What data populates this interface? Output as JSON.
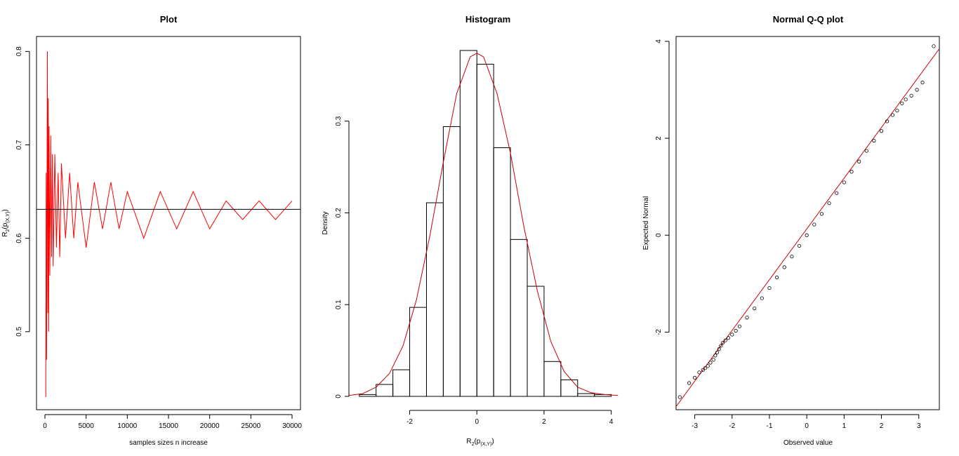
{
  "chart_data": [
    {
      "type": "line",
      "title": "Plot",
      "xlabel": "samples sizes n increase",
      "ylabel": {
        "main": "R",
        "sub1": "2",
        "mid": "(p",
        "sub2": "(X,Y)",
        "end": ")"
      },
      "xlim": [
        0,
        30000
      ],
      "ylim": [
        0.43,
        0.81
      ],
      "xticks": [
        0,
        5000,
        10000,
        15000,
        20000,
        25000,
        30000
      ],
      "yticks": [
        0.5,
        0.6,
        0.7,
        0.8
      ],
      "series": [
        {
          "color": "#ff0000",
          "x": [
            100,
            150,
            200,
            250,
            300,
            350,
            400,
            450,
            500,
            600,
            700,
            800,
            900,
            1000,
            1200,
            1400,
            1600,
            1800,
            2000,
            2500,
            3000,
            3500,
            4000,
            5000,
            6000,
            7000,
            8000,
            9000,
            10000,
            12000,
            14000,
            16000,
            18000,
            20000,
            22000,
            24000,
            26000,
            28000,
            30000
          ],
          "y": [
            0.43,
            0.67,
            0.47,
            0.63,
            0.8,
            0.52,
            0.75,
            0.5,
            0.72,
            0.56,
            0.71,
            0.58,
            0.69,
            0.57,
            0.69,
            0.59,
            0.67,
            0.58,
            0.68,
            0.6,
            0.67,
            0.6,
            0.66,
            0.59,
            0.66,
            0.61,
            0.66,
            0.61,
            0.65,
            0.6,
            0.65,
            0.61,
            0.65,
            0.61,
            0.64,
            0.62,
            0.64,
            0.62,
            0.64
          ]
        }
      ],
      "hline": 0.631,
      "hline_color": "#000000"
    },
    {
      "type": "bar",
      "title": "Histogram",
      "xlabel": {
        "main": "R",
        "sub1": "2",
        "mid": "(p",
        "sub2": "(X,Y)",
        "end": ")"
      },
      "ylabel": "Density",
      "xlim": [
        -3.6,
        4.3
      ],
      "ylim": [
        0,
        0.38
      ],
      "xticks": [
        -2,
        0,
        2,
        4
      ],
      "yticks": [
        0.0,
        0.1,
        0.2,
        0.3
      ],
      "bin_edges": [
        -3.5,
        -3.0,
        -2.5,
        -2.0,
        -1.5,
        -1.0,
        -0.5,
        0.0,
        0.5,
        1.0,
        1.5,
        2.0,
        2.5,
        3.0,
        3.5,
        4.0
      ],
      "values": [
        0.002,
        0.013,
        0.029,
        0.097,
        0.211,
        0.294,
        0.377,
        0.362,
        0.271,
        0.171,
        0.12,
        0.038,
        0.018,
        0.003,
        0.002
      ],
      "density_curve": {
        "color": "#cc0000",
        "x": [
          -3.8,
          -3.4,
          -3.0,
          -2.6,
          -2.2,
          -1.8,
          -1.4,
          -1.0,
          -0.6,
          -0.2,
          0.0,
          0.2,
          0.6,
          1.0,
          1.4,
          1.8,
          2.2,
          2.6,
          3.0,
          3.4,
          3.8,
          4.2
        ],
        "y": [
          0.001,
          0.003,
          0.01,
          0.025,
          0.055,
          0.105,
          0.175,
          0.255,
          0.33,
          0.37,
          0.374,
          0.37,
          0.33,
          0.265,
          0.185,
          0.115,
          0.06,
          0.027,
          0.01,
          0.004,
          0.002,
          0.001
        ]
      }
    },
    {
      "type": "scatter",
      "title": "Normal Q-Q plot",
      "xlabel": "Observed value",
      "ylabel": "Expected Normal",
      "xlim": [
        -3.5,
        3.55
      ],
      "ylim": [
        -3.6,
        4.1
      ],
      "xticks": [
        -3,
        -2,
        -1,
        0,
        1,
        2,
        3
      ],
      "yticks": [
        -2,
        0,
        2,
        4
      ],
      "points": [
        [
          -3.4,
          -3.34
        ],
        [
          -3.15,
          -3.05
        ],
        [
          -3.0,
          -2.94
        ],
        [
          -2.88,
          -2.83
        ],
        [
          -2.78,
          -2.78
        ],
        [
          -2.72,
          -2.74
        ],
        [
          -2.65,
          -2.7
        ],
        [
          -2.58,
          -2.63
        ],
        [
          -2.5,
          -2.57
        ],
        [
          -2.45,
          -2.48
        ],
        [
          -2.4,
          -2.42
        ],
        [
          -2.35,
          -2.35
        ],
        [
          -2.3,
          -2.28
        ],
        [
          -2.25,
          -2.22
        ],
        [
          -2.18,
          -2.17
        ],
        [
          -2.1,
          -2.12
        ],
        [
          -2.0,
          -2.05
        ],
        [
          -1.9,
          -1.97
        ],
        [
          -1.8,
          -1.88
        ],
        [
          -1.6,
          -1.7
        ],
        [
          -1.4,
          -1.51
        ],
        [
          -1.2,
          -1.3
        ],
        [
          -1.0,
          -1.09
        ],
        [
          -0.8,
          -0.87
        ],
        [
          -0.6,
          -0.66
        ],
        [
          -0.4,
          -0.44
        ],
        [
          -0.2,
          -0.22
        ],
        [
          0.0,
          0.0
        ],
        [
          0.2,
          0.22
        ],
        [
          0.4,
          0.44
        ],
        [
          0.6,
          0.66
        ],
        [
          0.8,
          0.87
        ],
        [
          1.0,
          1.09
        ],
        [
          1.2,
          1.31
        ],
        [
          1.4,
          1.52
        ],
        [
          1.6,
          1.74
        ],
        [
          1.8,
          1.95
        ],
        [
          2.0,
          2.15
        ],
        [
          2.15,
          2.35
        ],
        [
          2.3,
          2.48
        ],
        [
          2.42,
          2.57
        ],
        [
          2.55,
          2.72
        ],
        [
          2.65,
          2.8
        ],
        [
          2.8,
          2.88
        ],
        [
          2.95,
          3.0
        ],
        [
          3.1,
          3.15
        ],
        [
          3.4,
          3.9
        ]
      ],
      "reference_line": {
        "color": "#cc0000",
        "x": [
          -3.8,
          3.6
        ],
        "y": [
          -3.85,
          3.9
        ]
      }
    }
  ]
}
